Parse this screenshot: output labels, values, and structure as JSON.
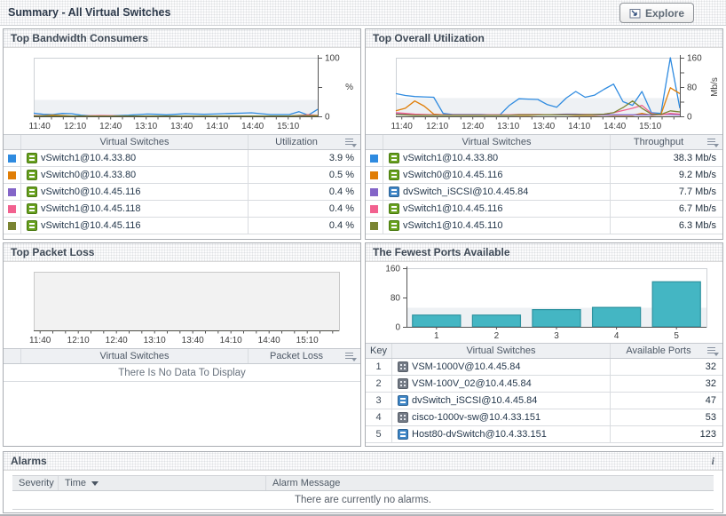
{
  "header": {
    "title": "Summary - All Virtual Switches",
    "explore_label": "Explore"
  },
  "panels": {
    "bandwidth": {
      "title": "Top Bandwidth Consumers",
      "table": {
        "name_header": "Virtual Switches",
        "value_header": "Utilization",
        "rows": [
          {
            "swatch": "#2f8be0",
            "icon": "vswitch",
            "name": "vSwitch1@10.4.33.80",
            "value": "3.9 %"
          },
          {
            "swatch": "#e07d05",
            "icon": "vswitch",
            "name": "vSwitch0@10.4.33.80",
            "value": "0.5 %"
          },
          {
            "swatch": "#8465c8",
            "icon": "vswitch",
            "name": "vSwitch0@10.4.45.116",
            "value": "0.4 %"
          },
          {
            "swatch": "#f2618f",
            "icon": "vswitch",
            "name": "vSwitch1@10.4.45.118",
            "value": "0.4 %"
          },
          {
            "swatch": "#7a8432",
            "icon": "vswitch",
            "name": "vSwitch1@10.4.45.116",
            "value": "0.4 %"
          }
        ]
      }
    },
    "utilization": {
      "title": "Top Overall Utilization",
      "table": {
        "name_header": "Virtual Switches",
        "value_header": "Throughput",
        "rows": [
          {
            "swatch": "#2f8be0",
            "icon": "vswitch",
            "name": "vSwitch1@10.4.33.80",
            "value": "38.3 Mb/s"
          },
          {
            "swatch": "#e07d05",
            "icon": "vswitch",
            "name": "vSwitch0@10.4.45.116",
            "value": "9.2 Mb/s"
          },
          {
            "swatch": "#8465c8",
            "icon": "dvswitch",
            "name": "dvSwitch_iSCSI@10.4.45.84",
            "value": "7.7 Mb/s"
          },
          {
            "swatch": "#f2618f",
            "icon": "vswitch",
            "name": "vSwitch1@10.4.45.116",
            "value": "6.7 Mb/s"
          },
          {
            "swatch": "#7a8432",
            "icon": "vswitch",
            "name": "vSwitch1@10.4.45.110",
            "value": "6.3 Mb/s"
          }
        ]
      }
    },
    "packet_loss": {
      "title": "Top Packet Loss",
      "table": {
        "name_header": "Virtual Switches",
        "value_header": "Packet Loss",
        "empty_text": "There Is No Data To Display"
      }
    },
    "ports": {
      "title": "The Fewest Ports Available",
      "table": {
        "key_header": "Key",
        "name_header": "Virtual Switches",
        "value_header": "Available Ports",
        "rows": [
          {
            "key": "1",
            "icon": "vsm",
            "name": "VSM-1000V@10.4.45.84",
            "value": "32"
          },
          {
            "key": "2",
            "icon": "vsm",
            "name": "VSM-100V_02@10.4.45.84",
            "value": "32"
          },
          {
            "key": "3",
            "icon": "dvswitch",
            "name": "dvSwitch_iSCSI@10.4.45.84",
            "value": "47"
          },
          {
            "key": "4",
            "icon": "vsm",
            "name": "cisco-1000v-sw@10.4.33.151",
            "value": "53"
          },
          {
            "key": "5",
            "icon": "dvswitch",
            "name": "Host80-dvSwitch@10.4.33.151",
            "value": "123"
          }
        ]
      }
    },
    "alarms": {
      "title": "Alarms",
      "info_glyph": "i",
      "col_severity": "Severity",
      "col_time": "Time",
      "col_message": "Alarm Message",
      "empty_text": "There are currently no alarms."
    }
  },
  "chart_data": [
    {
      "id": "bandwidth",
      "type": "line",
      "title": "Top Bandwidth Consumers",
      "xlabel": "",
      "ylabel": "%",
      "ylabel_rotate": false,
      "ylim": [
        0,
        100
      ],
      "y_axis": "right",
      "y_ticks": [
        {
          "v": 0,
          "label": "0"
        },
        {
          "v": 50,
          "label": ""
        },
        {
          "v": 100,
          "label": "100"
        }
      ],
      "x_ticks": [
        "11:40",
        "12:10",
        "12:40",
        "13:10",
        "13:40",
        "14:10",
        "14:40",
        "15:10"
      ],
      "band_max": 28,
      "frame": "#cdd1d6",
      "series": [
        {
          "name": "vSwitch1@10.4.33.80",
          "color": "#2f8be0",
          "values": [
            5.5,
            3.5,
            3,
            5,
            4.5,
            2,
            1,
            1,
            1,
            1.5,
            2,
            3,
            4,
            3.5,
            2.5,
            3.5,
            4.5,
            4,
            3.5,
            4,
            4.5,
            5,
            5.5,
            6,
            4.5,
            3,
            3,
            3,
            8,
            2,
            12
          ]
        },
        {
          "name": "vSwitch0@10.4.33.80",
          "color": "#e07d05",
          "values": [
            1.5,
            1,
            2,
            1.5,
            0.5,
            0.5,
            0.5,
            0.5,
            0.5,
            0.5,
            0.5,
            0.5,
            0.5,
            0.5,
            0.5,
            0.5,
            0.5,
            0.5,
            0.5,
            0.5,
            0.5,
            0.5,
            0.5,
            0.5,
            0.5,
            0.5,
            0.5,
            0.5,
            0.5,
            2.5,
            1.5
          ]
        },
        {
          "name": "vSwitch0@10.4.45.116",
          "color": "#8465c8",
          "values": [
            1,
            0.8,
            0.6,
            0.5,
            0.4,
            0.4,
            0.4,
            0.4,
            0.4,
            0.4,
            0.4,
            0.4,
            0.4,
            0.4,
            0.4,
            0.4,
            0.4,
            0.4,
            0.4,
            0.4,
            0.4,
            0.4,
            0.4,
            0.4,
            0.4,
            0.4,
            0.4,
            0.4,
            0.6,
            0.5,
            0.4
          ]
        },
        {
          "name": "vSwitch1@10.4.45.118",
          "color": "#f2618f",
          "values": [
            0.8,
            0.6,
            0.5,
            0.4,
            0.4,
            0.4,
            1,
            1.5,
            1.2,
            0.8,
            0.4,
            0.4,
            0.4,
            0.4,
            0.4,
            0.4,
            0.4,
            0.4,
            0.4,
            0.4,
            0.4,
            0.4,
            0.4,
            0.5,
            0.6,
            0.5,
            0.4,
            0.4,
            1.5,
            2.5,
            0.8
          ]
        },
        {
          "name": "vSwitch1@10.4.45.116",
          "color": "#7a8432",
          "values": [
            0.6,
            0.5,
            0.4,
            0.4,
            0.4,
            0.4,
            0.4,
            0.4,
            0.4,
            0.4,
            0.4,
            0.4,
            0.4,
            0.4,
            0.4,
            0.4,
            0.4,
            0.4,
            0.4,
            0.4,
            0.4,
            0.4,
            0.4,
            0.4,
            0.4,
            0.4,
            0.4,
            0.6,
            1.5,
            1,
            0.8
          ]
        }
      ]
    },
    {
      "id": "utilization",
      "type": "line",
      "title": "Top Overall Utilization",
      "xlabel": "",
      "ylabel": "Mb/s",
      "ylabel_rotate": true,
      "ylim": [
        0,
        160
      ],
      "y_axis": "right",
      "y_ticks": [
        {
          "v": 0,
          "label": "0"
        },
        {
          "v": 40,
          "label": ""
        },
        {
          "v": 80,
          "label": "80"
        },
        {
          "v": 120,
          "label": ""
        },
        {
          "v": 160,
          "label": "160"
        }
      ],
      "x_ticks": [
        "11:40",
        "12:10",
        "12:40",
        "13:10",
        "13:40",
        "14:10",
        "14:40",
        "15:10"
      ],
      "band_max": 50,
      "frame": "#cdd1d6",
      "series": [
        {
          "name": "vSwitch1@10.4.33.80",
          "color": "#2f8be0",
          "values": [
            62,
            57,
            54,
            53,
            52,
            8,
            5,
            5,
            5,
            5,
            4,
            4,
            30,
            48,
            47,
            46,
            32,
            25,
            50,
            68,
            52,
            58,
            74,
            88,
            40,
            30,
            68,
            10,
            8,
            160,
            22
          ]
        },
        {
          "name": "vSwitch0@10.4.45.116",
          "color": "#e07d05",
          "values": [
            15,
            22,
            42,
            28,
            6,
            4,
            3,
            3,
            3,
            3,
            3,
            3,
            3,
            3,
            3,
            4,
            4,
            4,
            4,
            3,
            3,
            3,
            4,
            3,
            3,
            3,
            8,
            3,
            5,
            78,
            62
          ]
        },
        {
          "name": "dvSwitch_iSCSI@10.4.45.84",
          "color": "#8465c8",
          "values": [
            8,
            6,
            5,
            4,
            3,
            3,
            3,
            3,
            3,
            3,
            3,
            3,
            3,
            4,
            4,
            4,
            4,
            5,
            6,
            6,
            5,
            4,
            4,
            4,
            4,
            4,
            4,
            4,
            5,
            5,
            4
          ]
        },
        {
          "name": "vSwitch1@10.4.45.116",
          "color": "#f2618f",
          "values": [
            10,
            8,
            6,
            5,
            4,
            4,
            4,
            4,
            4,
            4,
            4,
            4,
            4,
            5,
            5,
            5,
            4,
            4,
            4,
            4,
            5,
            5,
            6,
            10,
            16,
            22,
            30,
            8,
            4,
            8,
            6
          ]
        },
        {
          "name": "vSwitch1@10.4.45.110",
          "color": "#7a8432",
          "values": [
            5,
            4,
            3,
            3,
            3,
            3,
            3,
            3,
            3,
            3,
            3,
            3,
            3,
            4,
            4,
            4,
            4,
            4,
            4,
            4,
            4,
            5,
            6,
            10,
            24,
            42,
            22,
            6,
            5,
            15,
            12
          ]
        }
      ]
    },
    {
      "id": "packet_loss",
      "type": "line",
      "title": "Top Packet Loss",
      "xlabel": "",
      "ylabel": "",
      "ylim": [
        0,
        100
      ],
      "y_axis": "none",
      "y_ticks": [],
      "x_ticks": [
        "11:40",
        "12:10",
        "12:40",
        "13:10",
        "13:40",
        "14:10",
        "14:40",
        "15:10"
      ],
      "band_max": 0,
      "plot_fill": "#f2f2f2",
      "frame": "#c9c9c9",
      "series": []
    },
    {
      "id": "ports",
      "type": "bar",
      "title": "The Fewest Ports Available",
      "xlabel": "",
      "ylabel": "",
      "ylim": [
        0,
        160
      ],
      "y_ticks": [
        {
          "v": 0,
          "label": "0"
        },
        {
          "v": 80,
          "label": "80"
        },
        {
          "v": 160,
          "label": "160"
        }
      ],
      "categories": [
        "1",
        "2",
        "3",
        "4",
        "5"
      ],
      "values": [
        32,
        32,
        47,
        53,
        123
      ],
      "band_max": 52,
      "bar_color": "#44b6c3",
      "bar_stroke": "#2d929f",
      "frame": "#cdd1d6"
    }
  ]
}
